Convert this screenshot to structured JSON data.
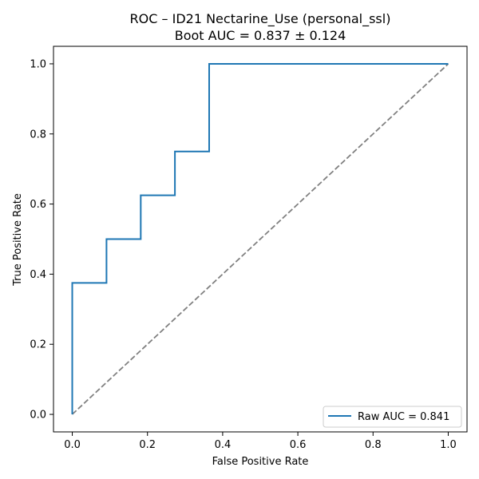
{
  "chart_data": {
    "type": "line",
    "title": "ROC – ID21 Nectarine_Use (personal_ssl)",
    "subtitle": "Boot AUC = 0.837 ± 0.124",
    "xlabel": "False Positive Rate",
    "ylabel": "True Positive Rate",
    "xlim": [
      -0.05,
      1.05
    ],
    "ylim": [
      -0.05,
      1.05
    ],
    "xticks": [
      0.0,
      0.2,
      0.4,
      0.6,
      0.8,
      1.0
    ],
    "yticks": [
      0.0,
      0.2,
      0.4,
      0.6,
      0.8,
      1.0
    ],
    "xtick_labels": [
      "0.0",
      "0.2",
      "0.4",
      "0.6",
      "0.8",
      "1.0"
    ],
    "ytick_labels": [
      "0.0",
      "0.2",
      "0.4",
      "0.6",
      "0.8",
      "1.0"
    ],
    "grid": false,
    "legend_position": "lower-right",
    "series": [
      {
        "name": "Raw AUC = 0.841",
        "color": "#1f77b4",
        "style": "solid",
        "x": [
          0.0,
          0.0,
          0.091,
          0.091,
          0.182,
          0.182,
          0.273,
          0.273,
          0.364,
          0.364,
          1.0
        ],
        "y": [
          0.0,
          0.375,
          0.375,
          0.5,
          0.5,
          0.625,
          0.625,
          0.75,
          0.75,
          1.0,
          1.0
        ]
      },
      {
        "color": "#808080",
        "style": "dashed",
        "x": [
          0.0,
          1.0
        ],
        "y": [
          0.0,
          1.0
        ]
      }
    ]
  }
}
